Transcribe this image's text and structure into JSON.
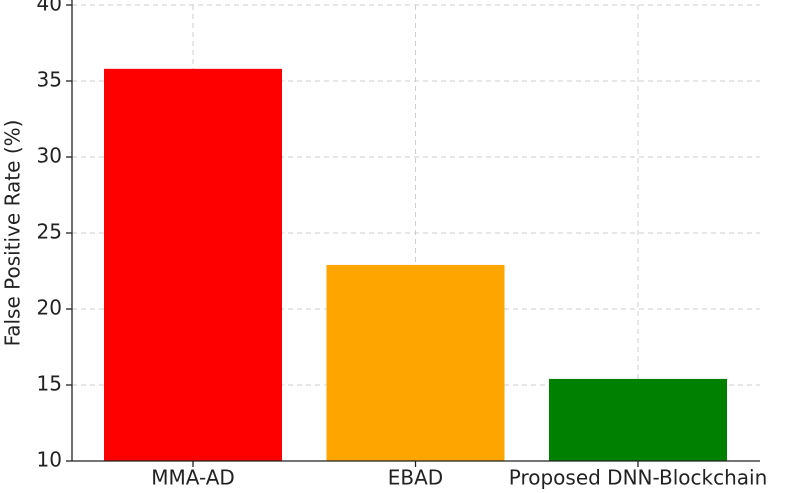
{
  "chart_data": {
    "type": "bar",
    "y_label": "False Positive Rate (%)",
    "categories": [
      "MMA-AD",
      "EBAD",
      "Proposed DNN-Blockchain"
    ],
    "values": [
      35.8,
      22.9,
      15.4
    ],
    "colors": [
      "#ff0000",
      "#ffa500",
      "#008000"
    ],
    "ylim": [
      10,
      40
    ],
    "yticks": [
      10,
      15,
      20,
      25,
      30,
      35,
      40
    ],
    "grid": true
  }
}
